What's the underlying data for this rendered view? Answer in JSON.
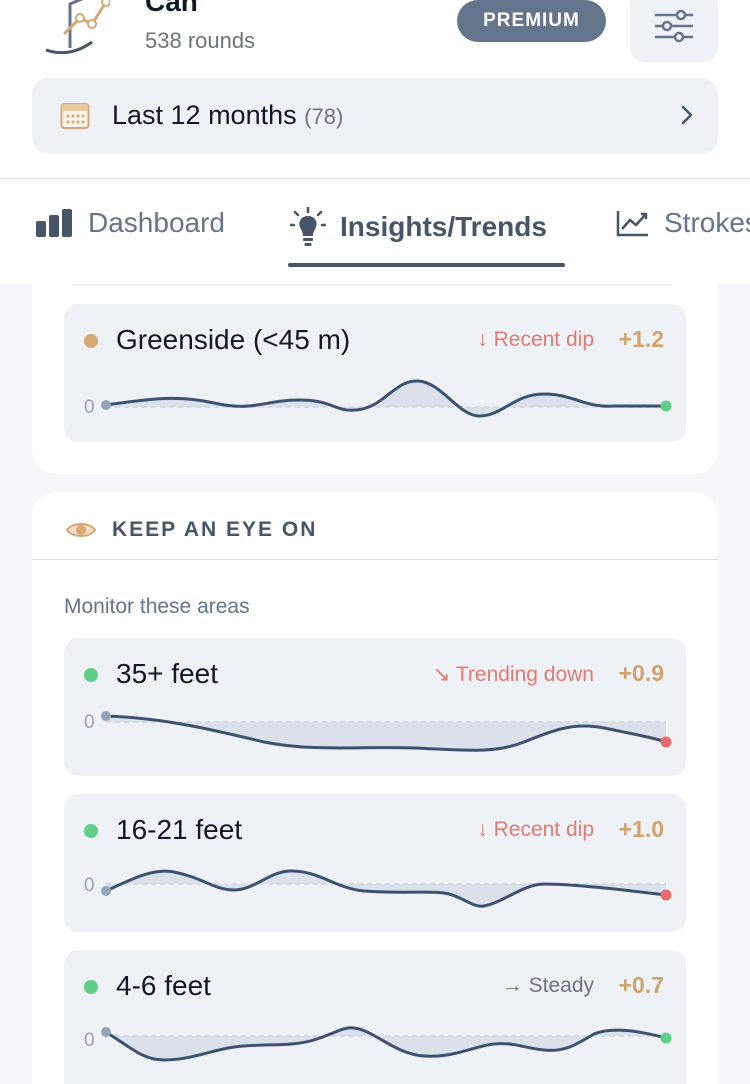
{
  "header": {
    "user_name": "Can",
    "rounds": "538 rounds",
    "premium_label": "PREMIUM"
  },
  "period": {
    "label": "Last 12 months",
    "count": "(78)"
  },
  "tabs": [
    {
      "label": "Dashboard"
    },
    {
      "label": "Insights/Trends"
    },
    {
      "label": "Strokes"
    }
  ],
  "top_card": {
    "metric": {
      "name": "Greenside (<45 m)",
      "trend": "↓ Recent dip",
      "delta": "+1.2",
      "zero": "0",
      "dot_color": "#d6a775",
      "trend_color": "#e07a72"
    }
  },
  "keep_eye": {
    "title": "KEEP AN EYE ON",
    "subtitle": "Monitor these areas",
    "metrics": [
      {
        "name": "35+ feet",
        "trend": "↘ Trending down",
        "delta": "+0.9",
        "zero": "0",
        "dot_color": "#5fcf87",
        "trend_color": "#e07a72"
      },
      {
        "name": "16-21 feet",
        "trend": "↓ Recent dip",
        "delta": "+1.0",
        "zero": "0",
        "dot_color": "#5fcf87",
        "trend_color": "#e07a72"
      },
      {
        "name": "4-6 feet",
        "trend": "→ Steady",
        "delta": "+0.7",
        "zero": "0",
        "dot_color": "#5fcf87",
        "trend_color": "#6b7280"
      }
    ]
  },
  "colors": {
    "accent": "#475569",
    "delta": "#d1a36c",
    "positive_end": "#5fcf87",
    "negative_end": "#e86a6a",
    "line": "#3f5170"
  }
}
